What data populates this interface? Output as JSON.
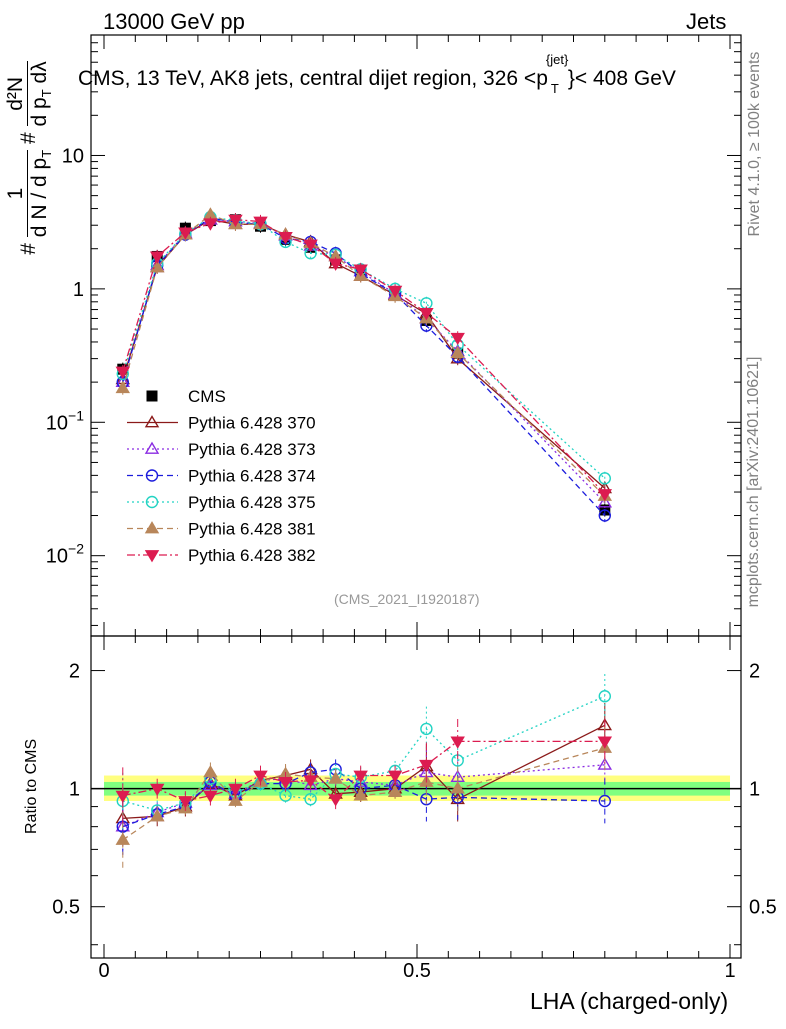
{
  "header": {
    "energy_label": "13000 GeV pp",
    "category_label": "Jets",
    "title": "CMS, 13 TeV, AK8 jets, central dijet region, 326 <p",
    "title_sup": "{jet}",
    "title_sub": "T",
    "title_end": "}< 408 GeV",
    "side_label_1": "Rivet 4.1.0, ≥ 100k events",
    "side_label_2": "mcplots.cern.ch [arXiv:2401.10621]",
    "watermark": "(CMS_2021_I1920187)"
  },
  "axes": {
    "xlabel": "LHA (charged-only)",
    "ratio_ylabel": "Ratio to CMS",
    "ylabel_parts": [
      "#",
      "1",
      "d N / d p",
      "T",
      "#",
      "d²N",
      "d p",
      "T",
      "dλ"
    ]
  },
  "colors": {
    "CMS": "#000000",
    "Pythia 6.428 370": "#8b1a1a",
    "Pythia 6.428 373": "#8a2be2",
    "Pythia 6.428 374": "#1c1cdc",
    "Pythia 6.428 375": "#22d3c3",
    "Pythia 6.428 381": "#b8865a",
    "Pythia 6.428 382": "#dc1c50",
    "band_inner": "#80ff80",
    "band_outer": "#ffff80"
  },
  "chart_data": [
    {
      "type": "line",
      "panel": "main",
      "title": "CMS, 13 TeV, AK8 jets, central dijet region, 326 <pT{jet}< 408 GeV",
      "xlabel": "LHA (charged-only)",
      "ylabel": "1/(dN/dpT) d²N/(dpT dλ)",
      "yscale": "log",
      "xlim": [
        0,
        1
      ],
      "ylim": [
        0.0025,
        80
      ],
      "xticks": [
        {
          "v": 0,
          "t": "0"
        },
        {
          "v": 0.5,
          "t": "0.5"
        },
        {
          "v": 1,
          "t": "1"
        }
      ],
      "yticks": [
        {
          "v": 0.01,
          "b": "10",
          "e": "−2"
        },
        {
          "v": 0.1,
          "b": "10",
          "e": "−1"
        },
        {
          "v": 1,
          "b": "1",
          "e": ""
        },
        {
          "v": 10,
          "b": "10",
          "e": ""
        }
      ],
      "x": [
        0.03,
        0.085,
        0.13,
        0.17,
        0.21,
        0.25,
        0.29,
        0.33,
        0.37,
        0.41,
        0.465,
        0.515,
        0.565,
        0.8
      ],
      "series": [
        {
          "name": "CMS",
          "marker": "square-filled",
          "dash": "none",
          "values": [
            0.25,
            1.75,
            2.85,
            3.25,
            3.3,
            2.95,
            2.35,
            2.05,
            1.65,
            1.3,
            0.9,
            0.58,
            0.33,
            0.022
          ]
        },
        {
          "name": "Pythia 6.428 370",
          "marker": "triangle-up-open",
          "dash": "solid",
          "values": [
            0.21,
            1.45,
            2.55,
            3.3,
            3.05,
            3.05,
            2.55,
            2.25,
            1.55,
            1.25,
            0.9,
            0.65,
            0.3,
            0.032
          ]
        },
        {
          "name": "Pythia 6.428 373",
          "marker": "triangle-up-open",
          "dash": "dotted",
          "values": [
            0.2,
            1.5,
            2.6,
            3.3,
            3.2,
            3.1,
            2.5,
            2.1,
            1.75,
            1.35,
            0.92,
            0.6,
            0.34,
            0.025
          ]
        },
        {
          "name": "Pythia 6.428 374",
          "marker": "circle-open",
          "dash": "dashed",
          "values": [
            0.2,
            1.5,
            2.55,
            3.4,
            3.15,
            3.05,
            2.4,
            2.25,
            1.85,
            1.3,
            0.92,
            0.53,
            0.31,
            0.02
          ]
        },
        {
          "name": "Pythia 6.428 375",
          "marker": "circle-open",
          "dash": "dotted",
          "values": [
            0.23,
            1.55,
            2.6,
            3.45,
            3.25,
            3.05,
            2.25,
            1.85,
            1.8,
            1.4,
            1.0,
            0.78,
            0.38,
            0.038
          ]
        },
        {
          "name": "Pythia 6.428 381",
          "marker": "triangle-up-filled",
          "dash": "dashed",
          "values": [
            0.18,
            1.45,
            2.55,
            3.6,
            3.05,
            3.05,
            2.55,
            2.2,
            1.75,
            1.25,
            0.88,
            0.6,
            0.33,
            0.028
          ]
        },
        {
          "name": "Pythia 6.428 382",
          "marker": "triangle-down-filled",
          "dash": "dashdot",
          "values": [
            0.24,
            1.75,
            2.65,
            3.1,
            3.3,
            3.2,
            2.45,
            2.15,
            1.55,
            1.4,
            0.97,
            0.66,
            0.43,
            0.029
          ]
        }
      ]
    },
    {
      "type": "line",
      "panel": "ratio",
      "xlabel": "LHA (charged-only)",
      "ylabel": "Ratio to CMS",
      "yscale": "log",
      "xlim": [
        0,
        1
      ],
      "ylim": [
        0.37,
        2.45
      ],
      "yticks": [
        {
          "v": 0.5,
          "t": "0.5"
        },
        {
          "v": 1,
          "t": "1"
        },
        {
          "v": 2,
          "t": "2"
        }
      ],
      "x": [
        0.03,
        0.085,
        0.13,
        0.17,
        0.21,
        0.25,
        0.29,
        0.33,
        0.37,
        0.41,
        0.465,
        0.515,
        0.565,
        0.8
      ],
      "series": [
        {
          "name": "Pythia 6.428 370",
          "values": [
            0.84,
            0.85,
            0.9,
            1.03,
            0.96,
            1.05,
            1.08,
            1.12,
            0.97,
            0.98,
            1.0,
            1.14,
            0.94,
            1.45
          ]
        },
        {
          "name": "Pythia 6.428 373",
          "values": [
            0.8,
            0.87,
            0.92,
            1.02,
            0.97,
            1.05,
            1.06,
            1.02,
            1.06,
            1.04,
            1.02,
            1.1,
            1.07,
            1.15
          ]
        },
        {
          "name": "Pythia 6.428 374",
          "values": [
            0.8,
            0.86,
            0.9,
            1.04,
            0.96,
            1.03,
            1.03,
            1.1,
            1.12,
            1.0,
            1.02,
            0.94,
            0.95,
            0.93
          ]
        },
        {
          "name": "Pythia 6.428 375",
          "values": [
            0.93,
            0.88,
            0.92,
            1.06,
            0.98,
            1.03,
            0.96,
            0.94,
            1.09,
            1.07,
            1.11,
            1.42,
            1.18,
            1.72
          ]
        },
        {
          "name": "Pythia 6.428 381",
          "values": [
            0.74,
            0.85,
            0.89,
            1.1,
            0.93,
            1.04,
            1.09,
            1.07,
            1.06,
            0.96,
            0.98,
            1.04,
            1.0,
            1.27
          ]
        },
        {
          "name": "Pythia 6.428 382",
          "values": [
            0.96,
            1.0,
            0.93,
            0.96,
            1.0,
            1.08,
            1.04,
            1.05,
            0.94,
            1.08,
            1.08,
            1.15,
            1.32,
            1.32
          ]
        }
      ]
    }
  ]
}
